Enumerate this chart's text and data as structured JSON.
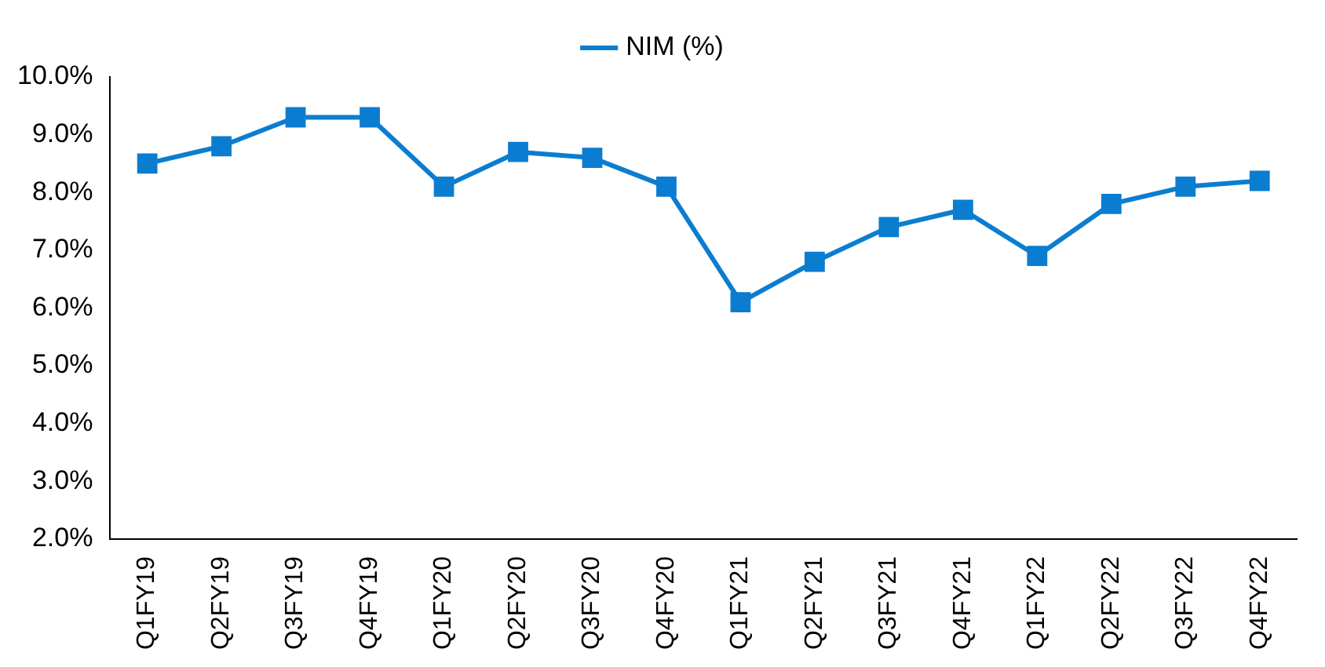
{
  "chart_data": {
    "type": "line",
    "categories": [
      "Q1FY19",
      "Q2FY19",
      "Q3FY19",
      "Q4FY19",
      "Q1FY20",
      "Q2FY20",
      "Q3FY20",
      "Q4FY20",
      "Q1FY21",
      "Q2FY21",
      "Q3FY21",
      "Q4FY21",
      "Q1FY22",
      "Q2FY22",
      "Q3FY22",
      "Q4FY22"
    ],
    "series": [
      {
        "name": "NIM (%)",
        "color": "#0b7dd0",
        "values": [
          8.5,
          8.8,
          9.3,
          9.3,
          8.1,
          8.7,
          8.6,
          8.1,
          6.1,
          6.8,
          7.4,
          7.7,
          6.9,
          7.8,
          8.1,
          8.2
        ]
      }
    ],
    "ylim": [
      2,
      10
    ],
    "yticks": [
      {
        "value": 2,
        "label": "2.0%"
      },
      {
        "value": 3,
        "label": "3.0%"
      },
      {
        "value": 4,
        "label": "4.0%"
      },
      {
        "value": 5,
        "label": "5.0%"
      },
      {
        "value": 6,
        "label": "6.0%"
      },
      {
        "value": 7,
        "label": "7.0%"
      },
      {
        "value": 8,
        "label": "8.0%"
      },
      {
        "value": 9,
        "label": "9.0%"
      },
      {
        "value": 10,
        "label": "10.0%"
      }
    ],
    "grid": false,
    "legend": "top",
    "marker": "square",
    "line_style": "solid"
  }
}
